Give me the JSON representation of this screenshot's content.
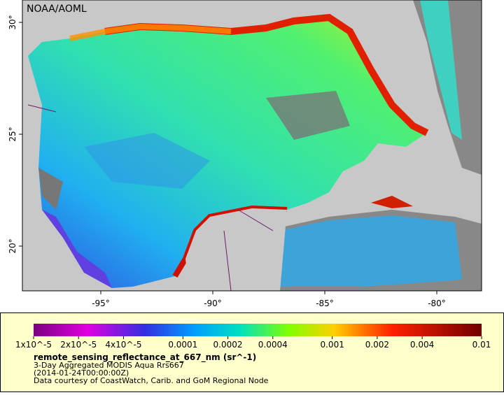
{
  "watermark": "NOAA/AOML",
  "map": {
    "xlim": [
      -98.5,
      -78
    ],
    "ylim": [
      18,
      31
    ],
    "xticks": [
      {
        "value": -95,
        "label": "-95°"
      },
      {
        "value": -90,
        "label": "-90°"
      },
      {
        "value": -85,
        "label": "-85°"
      },
      {
        "value": -80,
        "label": "-80°"
      }
    ],
    "yticks": [
      {
        "value": 20,
        "label": "20°"
      },
      {
        "value": 25,
        "label": "25°"
      },
      {
        "value": 30,
        "label": "30°"
      }
    ]
  },
  "colorbar": {
    "scale": "log",
    "range": [
      1e-05,
      0.01
    ],
    "ticks": [
      {
        "value": 1e-05,
        "label": "1x10^-5"
      },
      {
        "value": 2e-05,
        "label": "2x10^-5"
      },
      {
        "value": 4e-05,
        "label": "4x10^-5"
      },
      0.0001,
      0.0002,
      0.0004,
      0.001,
      0.002,
      0.004,
      0.01
    ]
  },
  "legend": {
    "title": "remote_sensing_reflectance_at_667_nm (sr^-1)",
    "lines": [
      "3-Day Aggregated MODIS Aqua Rrs667",
      "(2014-01-24T00:00:00Z)",
      "Data courtesy of CoastWatch, Carib. and GoM Regional Node"
    ]
  }
}
